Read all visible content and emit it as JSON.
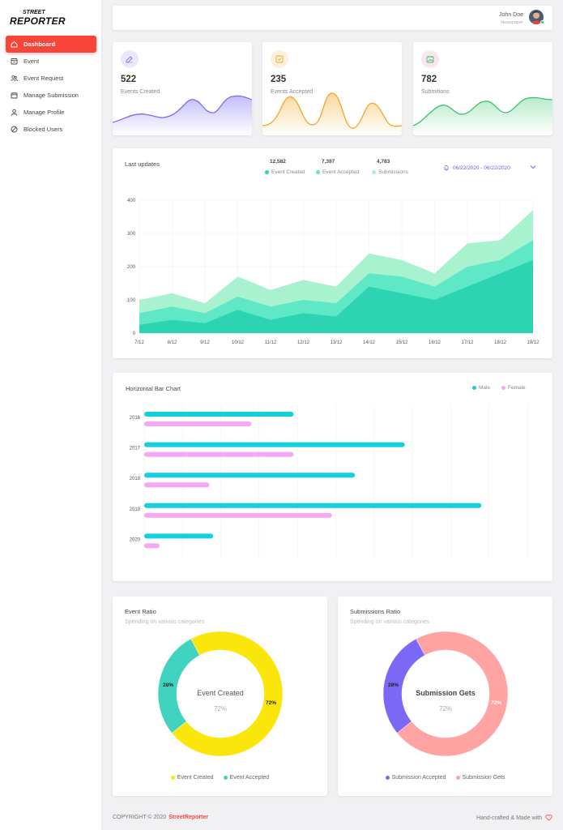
{
  "brand": {
    "line1": "STREET",
    "line2": "REPORTER"
  },
  "sidebar": {
    "items": [
      {
        "label": "Dashboard",
        "icon": "home-icon",
        "active": true
      },
      {
        "label": "Event",
        "icon": "event-icon"
      },
      {
        "label": "Event Request",
        "icon": "users-icon"
      },
      {
        "label": "Manage Submission",
        "icon": "calendar-icon"
      },
      {
        "label": "Manage Profile",
        "icon": "user-icon"
      },
      {
        "label": "Blocked Users",
        "icon": "block-icon"
      }
    ]
  },
  "header": {
    "user_name": "John Doe",
    "user_role": "Newspaper"
  },
  "stats": [
    {
      "value": "522",
      "label": "Events Created",
      "color": "#7b6ff0",
      "icon": "edit-icon"
    },
    {
      "value": "235",
      "label": "Events Accepted",
      "color": "#f5a623",
      "icon": "check-square-icon"
    },
    {
      "value": "782",
      "label": "Submitions",
      "color": "#3cc46b",
      "icon": "image-icon"
    }
  ],
  "updates": {
    "title": "Last updates",
    "legend": [
      {
        "value": "12,582",
        "label": "Event Created",
        "color": "#2dd4b4"
      },
      {
        "value": "7,397",
        "label": "Event Accepted",
        "color": "#5ee8c5"
      },
      {
        "value": "4,783",
        "label": "Submissions",
        "color": "#a8f2d0"
      }
    ],
    "date_range": "06/22/2020 - 06/22/2020"
  },
  "horizontal": {
    "title": "Horizontal Bar Chart",
    "legend": [
      {
        "label": "Male",
        "color": "#12d0e0"
      },
      {
        "label": "Female",
        "color": "#f7a8f2"
      }
    ]
  },
  "event_ratio": {
    "title": "Event Ratio",
    "subtitle": "Spending on various categories",
    "center_label": "Event Created",
    "center_value": "72%",
    "slices": [
      {
        "label": "Event Created",
        "pct": 72,
        "color": "#fae60a"
      },
      {
        "label": "Event Accepted",
        "pct": 28,
        "color": "#40d4c0"
      }
    ],
    "pct_labels": [
      "28%",
      "72%"
    ]
  },
  "submission_ratio": {
    "title": "Submissions Ratio",
    "subtitle": "Spending on various categories",
    "center_label": "Submission Gets",
    "center_value": "72%",
    "slices": [
      {
        "label": "Submission Gets",
        "pct": 72,
        "color": "#ffa3a3"
      },
      {
        "label": "Submission Accepted",
        "pct": 28,
        "color": "#7b68f5"
      }
    ],
    "legend_order": [
      "Submission Accepted",
      "Submission Gets"
    ],
    "pct_labels": [
      "28%",
      "72%"
    ]
  },
  "footer": {
    "copyright": "COPYRIGHT © 2020",
    "brand": "StreetReporter",
    "right": "Hand-crafted & Made with"
  },
  "chart_data": [
    {
      "type": "area",
      "title": "Last updates",
      "categories": [
        "7/12",
        "8/12",
        "9/12",
        "10/12",
        "11/12",
        "12/12",
        "13/12",
        "14/12",
        "15/12",
        "16/12",
        "17/12",
        "18/12",
        "19/12"
      ],
      "series": [
        {
          "name": "Event Created",
          "values": [
            25,
            40,
            30,
            70,
            40,
            60,
            50,
            140,
            120,
            100,
            140,
            180,
            220
          ]
        },
        {
          "name": "Event Accepted",
          "values": [
            60,
            80,
            60,
            110,
            80,
            100,
            90,
            180,
            170,
            140,
            200,
            220,
            280
          ]
        },
        {
          "name": "Submissions",
          "values": [
            100,
            120,
            90,
            170,
            130,
            160,
            140,
            240,
            220,
            180,
            270,
            280,
            370
          ]
        }
      ],
      "ylim": [
        0,
        400
      ],
      "yticks": [
        0,
        100,
        200,
        300,
        400
      ],
      "grid": true
    },
    {
      "type": "bar",
      "orientation": "horizontal",
      "title": "Horizontal Bar Chart",
      "categories": [
        "2016",
        "2017",
        "2018",
        "2019",
        "2020"
      ],
      "series": [
        {
          "name": "Male",
          "values": [
            39,
            68,
            55,
            88,
            18
          ]
        },
        {
          "name": "Female",
          "values": [
            28,
            39,
            17,
            49,
            4
          ]
        }
      ],
      "xlim": [
        0,
        100
      ],
      "grid": true,
      "legend": "top-right"
    },
    {
      "type": "pie",
      "title": "Event Ratio",
      "labels": [
        "Event Created",
        "Event Accepted"
      ],
      "values": [
        72,
        28
      ]
    },
    {
      "type": "pie",
      "title": "Submissions Ratio",
      "labels": [
        "Submission Gets",
        "Submission Accepted"
      ],
      "values": [
        72,
        28
      ]
    }
  ]
}
